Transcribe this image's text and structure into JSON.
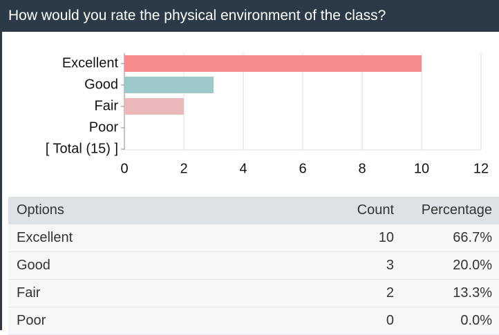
{
  "chart_data": {
    "type": "hbar",
    "title": "How would you rate the physical environment of the class?",
    "categories": [
      "Excellent",
      "Good",
      "Fair",
      "Poor",
      "[ Total (15) ]"
    ],
    "values": [
      10,
      3,
      2,
      0,
      null
    ],
    "colors": [
      "#f78a8e",
      "#9ccaca",
      "#ecb8bb",
      "#b0c4de"
    ],
    "xlim": [
      0,
      12
    ],
    "xticks": [
      0,
      2,
      4,
      6,
      8,
      10,
      12
    ],
    "grid": true
  },
  "table": {
    "columns": [
      "Options",
      "Count",
      "Percentage"
    ],
    "rows": [
      [
        "Excellent",
        "10",
        "66.7%"
      ],
      [
        "Good",
        "3",
        "20.0%"
      ],
      [
        "Fair",
        "2",
        "13.3%"
      ],
      [
        "Poor",
        "0",
        "0.0%"
      ]
    ]
  }
}
